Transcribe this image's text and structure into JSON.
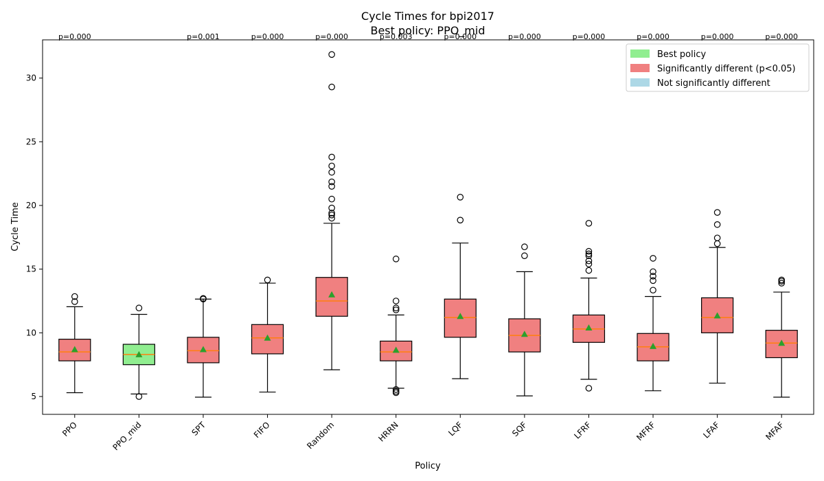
{
  "chart_data": {
    "type": "box",
    "title": "Cycle Times for bpi2017",
    "subtitle": "Best policy: PPO_mid",
    "xlabel": "Policy",
    "ylabel": "Cycle Time",
    "ylim": [
      3.6,
      33.0
    ],
    "yticks": [
      5,
      10,
      15,
      20,
      25,
      30
    ],
    "grid": false,
    "legend_position": "top-right",
    "legend": [
      {
        "label": "Best policy",
        "color": "#90ee90"
      },
      {
        "label": "Significantly different (p<0.05)",
        "color": "#f08080"
      },
      {
        "label": "Not significantly different",
        "color": "#add8e6"
      }
    ],
    "colors": {
      "median": "#ff7f0e",
      "mean": "#2ca02c",
      "outline": "#000000"
    },
    "categories": [
      "PPO",
      "PPO_mid",
      "SPT",
      "FIFO",
      "Random",
      "HRRN",
      "LQF",
      "SQF",
      "LFRF",
      "MFRF",
      "LFAF",
      "MFAF"
    ],
    "boxes": [
      {
        "policy": "PPO",
        "status": "significant",
        "p_label": "p=0.000",
        "whisker_low": 5.3,
        "q1": 7.8,
        "median": 8.5,
        "q3": 9.5,
        "whisker_high": 12.05,
        "mean": 8.7,
        "outliers": [
          12.45,
          12.85
        ]
      },
      {
        "policy": "PPO_mid",
        "status": "best",
        "p_label": "",
        "whisker_low": 5.2,
        "q1": 7.5,
        "median": 8.3,
        "q3": 9.1,
        "whisker_high": 11.45,
        "mean": 8.3,
        "outliers": [
          5.0,
          11.95
        ]
      },
      {
        "policy": "SPT",
        "status": "significant",
        "p_label": "p=0.001",
        "whisker_low": 4.95,
        "q1": 7.65,
        "median": 8.6,
        "q3": 9.65,
        "whisker_high": 12.65,
        "mean": 8.7,
        "outliers": [
          12.65,
          12.7
        ]
      },
      {
        "policy": "FIFO",
        "status": "significant",
        "p_label": "p=0.000",
        "whisker_low": 5.35,
        "q1": 8.35,
        "median": 9.6,
        "q3": 10.65,
        "whisker_high": 13.9,
        "mean": 9.6,
        "outliers": [
          14.15
        ]
      },
      {
        "policy": "Random",
        "status": "significant",
        "p_label": "p=0.000",
        "whisker_low": 7.1,
        "q1": 11.3,
        "median": 12.5,
        "q3": 14.35,
        "whisker_high": 18.6,
        "mean": 13.0,
        "outliers": [
          19.0,
          19.25,
          19.4,
          19.8,
          20.5,
          21.5,
          21.85,
          22.6,
          23.1,
          23.8,
          29.3,
          31.85
        ]
      },
      {
        "policy": "HRRN",
        "status": "significant",
        "p_label": "p=0.003",
        "whisker_low": 5.65,
        "q1": 7.8,
        "median": 8.5,
        "q3": 9.35,
        "whisker_high": 11.4,
        "mean": 8.65,
        "outliers": [
          5.3,
          5.4,
          5.55,
          11.8,
          11.95,
          12.5,
          15.8
        ]
      },
      {
        "policy": "LQF",
        "status": "significant",
        "p_label": "p=0.000",
        "whisker_low": 6.4,
        "q1": 9.65,
        "median": 11.2,
        "q3": 12.65,
        "whisker_high": 17.05,
        "mean": 11.3,
        "outliers": [
          18.85,
          20.65
        ]
      },
      {
        "policy": "SQF",
        "status": "significant",
        "p_label": "p=0.000",
        "whisker_low": 5.05,
        "q1": 8.5,
        "median": 9.8,
        "q3": 11.1,
        "whisker_high": 14.8,
        "mean": 9.9,
        "outliers": [
          16.05,
          16.75
        ]
      },
      {
        "policy": "LFRF",
        "status": "significant",
        "p_label": "p=0.000",
        "whisker_low": 6.35,
        "q1": 9.25,
        "median": 10.3,
        "q3": 11.4,
        "whisker_high": 14.3,
        "mean": 10.4,
        "outliers": [
          5.65,
          14.9,
          15.4,
          15.65,
          16.05,
          16.2,
          16.4,
          18.6
        ]
      },
      {
        "policy": "MFRF",
        "status": "significant",
        "p_label": "p=0.000",
        "whisker_low": 5.45,
        "q1": 7.8,
        "median": 8.9,
        "q3": 9.95,
        "whisker_high": 12.85,
        "mean": 8.95,
        "outliers": [
          13.35,
          14.1,
          14.45,
          14.8,
          15.85
        ]
      },
      {
        "policy": "LFAF",
        "status": "significant",
        "p_label": "p=0.000",
        "whisker_low": 6.05,
        "q1": 10.0,
        "median": 11.2,
        "q3": 12.75,
        "whisker_high": 16.7,
        "mean": 11.35,
        "outliers": [
          17.0,
          17.45,
          18.5,
          19.45
        ]
      },
      {
        "policy": "MFAF",
        "status": "significant",
        "p_label": "p=0.000",
        "whisker_low": 4.95,
        "q1": 8.05,
        "median": 9.2,
        "q3": 10.2,
        "whisker_high": 13.2,
        "mean": 9.2,
        "outliers": [
          13.9,
          14.05,
          14.15
        ]
      }
    ]
  }
}
